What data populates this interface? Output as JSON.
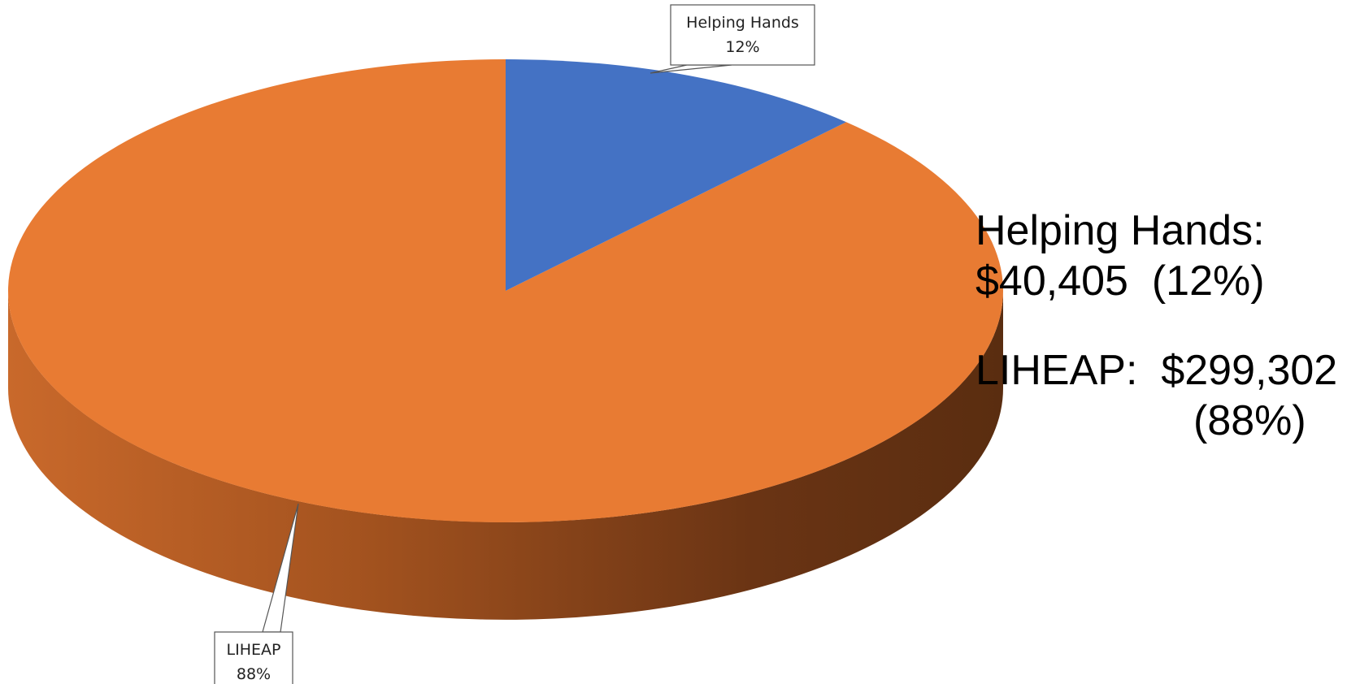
{
  "chart_data": {
    "type": "pie",
    "style": "3d",
    "slices": [
      {
        "label": "Helping Hands",
        "pct_label": "12%",
        "percent": 12,
        "color": "#4472C4"
      },
      {
        "label": "LIHEAP",
        "pct_label": "88%",
        "percent": 88,
        "color": "#E87B33"
      }
    ],
    "start_position": "top",
    "direction": "clockwise"
  },
  "side_text": {
    "line1": "Helping Hands:",
    "line2": "$40,405  (12%)",
    "line3": "LIHEAP:  $299,302",
    "line4": "(88%)"
  }
}
